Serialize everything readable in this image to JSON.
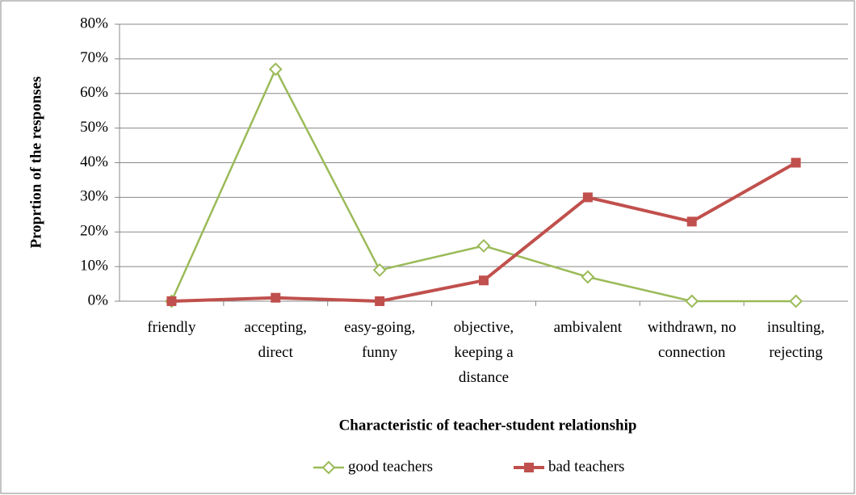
{
  "chart_data": {
    "type": "line",
    "y_label": "Proprtion of the responses",
    "x_label": "Characteristic of teacher-student relationship",
    "categories": [
      "friendly",
      "accepting, direct",
      "easy-going, funny",
      "objective, keeping a distance",
      "ambivalent",
      "withdrawn, no connection",
      "insulting, rejecting"
    ],
    "series": [
      {
        "name": "good teachers",
        "color": "#9bbb59",
        "marker": "diamond",
        "values": [
          0,
          67,
          9,
          16,
          7,
          0,
          0
        ]
      },
      {
        "name": "bad teachers",
        "color": "#c0504d",
        "marker": "square",
        "values": [
          0,
          1,
          0,
          6,
          30,
          23,
          40
        ]
      }
    ],
    "ylim": [
      0,
      80
    ],
    "yticks": [
      {
        "value": 0,
        "label": "0%"
      },
      {
        "value": 10,
        "label": "10%"
      },
      {
        "value": 20,
        "label": "20%"
      },
      {
        "value": 30,
        "label": "30%"
      },
      {
        "value": 40,
        "label": "40%"
      },
      {
        "value": 50,
        "label": "50%"
      },
      {
        "value": 60,
        "label": "60%"
      },
      {
        "value": 70,
        "label": "70%"
      },
      {
        "value": 80,
        "label": "80%"
      }
    ],
    "grid": true,
    "legend": "bottom"
  }
}
